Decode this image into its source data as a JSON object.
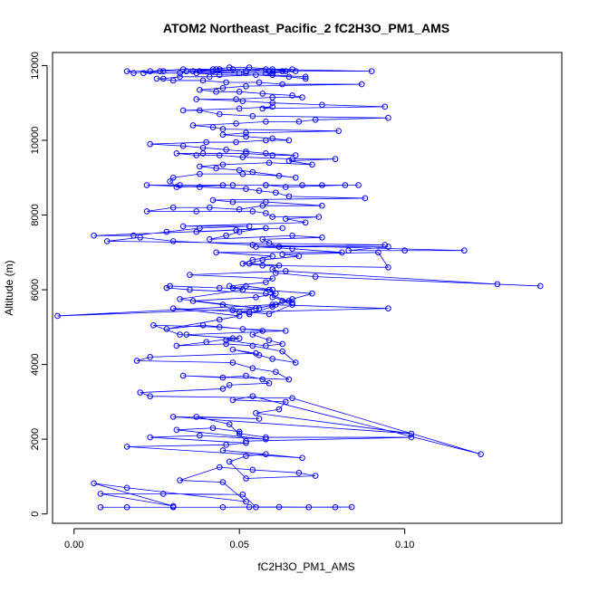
{
  "chart_data": {
    "type": "scatter",
    "title": "ATOM2 Northeast_Pacific_2 fC2H3O_PM1_AMS",
    "xlabel": "fC2H3O_PM1_AMS",
    "ylabel": "Altitude (m)",
    "xlim": [
      -0.0065,
      0.1475
    ],
    "ylim": [
      -250,
      12350
    ],
    "xticks": [
      0.0,
      0.05,
      0.1
    ],
    "xtick_labels": [
      "0.00",
      "0.05",
      "0.10"
    ],
    "yticks": [
      0,
      2000,
      4000,
      6000,
      8000,
      10000,
      12000
    ],
    "ytick_labels": [
      "0",
      "2000",
      "4000",
      "6000",
      "8000",
      "10000",
      "12000"
    ],
    "grid": false,
    "legend": "none",
    "connected_lines": true,
    "series": [
      {
        "color": "#0000ff",
        "marker": "open-circle",
        "x": [
          0.008,
          0.016,
          0.03,
          0.045,
          0.053,
          0.062,
          0.071,
          0.079,
          0.084,
          0.055,
          0.051,
          0.027,
          0.008,
          0.03,
          0.006,
          0.016,
          0.052,
          0.045,
          0.032,
          0.044,
          0.054,
          0.068,
          0.073,
          0.052,
          0.047,
          0.052,
          0.058,
          0.045,
          0.069,
          0.016,
          0.046,
          0.052,
          0.023,
          0.038,
          0.058,
          0.031,
          0.042,
          0.05,
          0.05,
          0.058,
          0.102,
          0.052,
          0.047,
          0.037,
          0.056,
          0.03,
          0.102,
          0.055,
          0.062,
          0.064,
          0.048,
          0.054,
          0.123,
          0.066,
          0.023,
          0.02,
          0.045,
          0.047,
          0.059,
          0.057,
          0.052,
          0.045,
          0.033,
          0.065,
          0.061,
          0.054,
          0.048,
          0.019,
          0.023,
          0.055,
          0.048,
          0.056,
          0.06,
          0.067,
          0.063,
          0.054,
          0.046,
          0.031,
          0.04,
          0.048,
          0.034,
          0.064,
          0.051,
          0.044,
          0.024,
          0.032,
          0.05,
          0.046,
          0.058,
          0.063,
          0.059,
          0.054,
          0.057,
          0.039,
          0.028,
          0.044,
          0.05,
          0.03,
          0.053,
          0.059,
          0.066,
          0.063,
          0.06,
          0.053,
          0.048,
          0.045,
          0.036,
          0.055,
          0.061,
          0.059,
          0.044,
          0.029,
          0.028,
          0.035,
          0.058,
          0.065,
          0.066,
          0.06,
          0.06,
          0.052,
          0.048,
          0.072,
          0.066,
          0.061,
          0.055,
          0.05,
          0.095,
          0.06,
          -0.005,
          0.056,
          0.032,
          0.051,
          0.047,
          0.058,
          0.06,
          0.035,
          0.064,
          0.128,
          0.141,
          0.073,
          0.061,
          0.06,
          0.062,
          0.053,
          0.057,
          0.068,
          0.063,
          0.092,
          0.095,
          0.057,
          0.051,
          0.054,
          0.06,
          0.043,
          0.081,
          0.066,
          0.055,
          0.094,
          0.01,
          0.02,
          0.03,
          0.054,
          0.118,
          0.1,
          0.083,
          0.095,
          0.062,
          0.059,
          0.057,
          0.075,
          0.066,
          0.041,
          0.046,
          0.05,
          0.058,
          0.037,
          0.049,
          0.063,
          0.006,
          0.018,
          0.028,
          0.038,
          0.053,
          0.033,
          0.07,
          0.064,
          0.074,
          0.06,
          0.058,
          0.054,
          0.037,
          0.022,
          0.03,
          0.041,
          0.05,
          0.057,
          0.075,
          0.058,
          0.048,
          0.042,
          0.088,
          0.065,
          0.061,
          0.056,
          0.052,
          0.038,
          0.022,
          0.032,
          0.045,
          0.058,
          0.064,
          0.082,
          0.086,
          0.075,
          0.069,
          0.058,
          0.048,
          0.031,
          0.029,
          0.03,
          0.038,
          0.051,
          0.062,
          0.067,
          0.054,
          0.05,
          0.043,
          0.038,
          0.045,
          0.059,
          0.072,
          0.065,
          0.079,
          0.066,
          0.051,
          0.044,
          0.037,
          0.031,
          0.039,
          0.052,
          0.06,
          0.067,
          0.058,
          0.052,
          0.046,
          0.039,
          0.033,
          0.023,
          0.04,
          0.049,
          0.058,
          0.065,
          0.06,
          0.052,
          0.045,
          0.052,
          0.08,
          0.045,
          0.042,
          0.036,
          0.049,
          0.058,
          0.068,
          0.073,
          0.095,
          0.054,
          0.044,
          0.038,
          0.033,
          0.05,
          0.06,
          0.057,
          0.094,
          0.075,
          0.06,
          0.051,
          0.037,
          0.049,
          0.06,
          0.069,
          0.066,
          0.057,
          0.05,
          0.043,
          0.038,
          0.045,
          0.052,
          0.087,
          0.063,
          0.056,
          0.046,
          0.039,
          0.03,
          0.025,
          0.027,
          0.032,
          0.041,
          0.055,
          0.065,
          0.07,
          0.07,
          0.06,
          0.044,
          0.037,
          0.052,
          0.06,
          0.067,
          0.063,
          0.058,
          0.05,
          0.038,
          0.059,
          0.066,
          0.048,
          0.042,
          0.032,
          0.021,
          0.026,
          0.034,
          0.042,
          0.047,
          0.053,
          0.06,
          0.064,
          0.09,
          0.058,
          0.052,
          0.044,
          0.036,
          0.027,
          0.016,
          0.018,
          0.023,
          0.033,
          0.043,
          0.052,
          0.06
        ],
        "y": [
          180,
          180,
          180,
          180,
          185,
          185,
          180,
          180,
          185,
          180,
          520,
          540,
          540,
          210,
          820,
          700,
          330,
          850,
          900,
          1250,
          1180,
          1100,
          1020,
          950,
          1400,
          1550,
          1600,
          1700,
          1500,
          1800,
          1850,
          1900,
          2050,
          2100,
          2000,
          2250,
          2300,
          2200,
          2150,
          2050,
          2050,
          1950,
          2400,
          2600,
          2550,
          2600,
          2150,
          2700,
          2800,
          3000,
          3050,
          3150,
          1600,
          3100,
          3150,
          3250,
          3350,
          3450,
          3500,
          3600,
          3700,
          3650,
          3700,
          3600,
          3800,
          3900,
          4050,
          4100,
          4200,
          4300,
          4400,
          4250,
          4150,
          4050,
          4350,
          4500,
          4550,
          4500,
          4600,
          4700,
          4800,
          4900,
          4950,
          5000,
          5050,
          4800,
          4700,
          4650,
          4500,
          4550,
          4650,
          4800,
          4900,
          5050,
          4950,
          5200,
          5300,
          5500,
          5400,
          5350,
          5600,
          5700,
          5550,
          5350,
          5450,
          5600,
          5700,
          5800,
          5900,
          6000,
          6050,
          6100,
          6050,
          6000,
          5900,
          5700,
          5650,
          5800,
          6000,
          6100,
          6050,
          5900,
          5750,
          5600,
          5500,
          5400,
          5500,
          5600,
          5300,
          5500,
          5750,
          6000,
          6100,
          6200,
          6300,
          6400,
          6500,
          6150,
          6100,
          6350,
          6450,
          6550,
          6650,
          6700,
          6800,
          6900,
          6950,
          7000,
          6600,
          6650,
          6700,
          6800,
          6900,
          7000,
          7000,
          7100,
          7150,
          7200,
          7300,
          7400,
          7300,
          7200,
          7050,
          7050,
          7050,
          7150,
          7150,
          7250,
          7350,
          7400,
          7450,
          7350,
          7450,
          7550,
          7650,
          7550,
          7600,
          7650,
          7450,
          7450,
          7550,
          7650,
          7700,
          7700,
          7800,
          7900,
          7950,
          7950,
          8050,
          8100,
          8100,
          8100,
          8200,
          8200,
          8150,
          8250,
          8250,
          8350,
          8350,
          8400,
          8450,
          8500,
          8600,
          8650,
          8700,
          8750,
          8800,
          8800,
          8800,
          8800,
          8750,
          8800,
          8800,
          8800,
          8800,
          8800,
          8800,
          8750,
          8900,
          9000,
          9100,
          9100,
          9050,
          9000,
          9150,
          9200,
          9250,
          9300,
          9350,
          9400,
          9350,
          9450,
          9500,
          9500,
          9550,
          9600,
          9600,
          9650,
          9650,
          9650,
          9600,
          9600,
          9650,
          9700,
          9750,
          9800,
          9850,
          9900,
          9950,
          9950,
          10000,
          10000,
          10050,
          10100,
          10150,
          10200,
          10250,
          10300,
          10350,
          10400,
          10450,
          10500,
          10500,
          10550,
          10600,
          10650,
          10700,
          10800,
          10800,
          10850,
          10900,
          10850,
          10900,
          10950,
          11000,
          11050,
          11100,
          11100,
          11150,
          11150,
          11200,
          11250,
          11300,
          11300,
          11350,
          11400,
          11450,
          11500,
          11500,
          11550,
          11550,
          11600,
          11600,
          11650,
          11650,
          11700,
          11700,
          11750,
          11700,
          11650,
          11700,
          11750,
          11750,
          11800,
          11800,
          11800,
          11850,
          11850,
          11800,
          11800,
          11850,
          11850,
          11900,
          11900,
          11850,
          11800,
          11800,
          11850,
          11850,
          11900,
          11950,
          11950,
          11900,
          11850,
          11850,
          11900,
          11850,
          11900,
          11850,
          11850,
          11850,
          11800,
          11850,
          11900,
          11900,
          11850,
          11850
        ]
      }
    ]
  }
}
